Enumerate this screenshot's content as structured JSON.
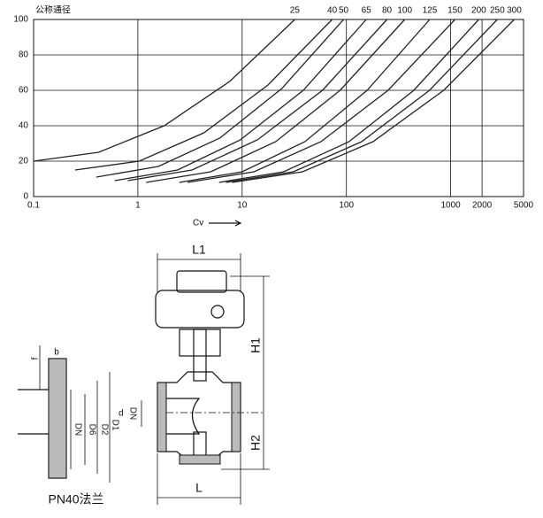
{
  "chart_data": {
    "type": "line",
    "y_label": "公称通径",
    "x_label": "Cv",
    "xscale": "log",
    "xlim": [
      0.1,
      5000
    ],
    "xticks": [
      0.1,
      1,
      10,
      100,
      1000,
      2000,
      5000
    ],
    "ylim": [
      0,
      100
    ],
    "yticks": [
      0,
      20,
      40,
      60,
      80,
      100
    ],
    "grid": true,
    "series": [
      {
        "name": "25",
        "color": "#222222",
        "x": [
          0.1,
          0.42,
          1.79,
          7.6,
          32
        ],
        "values": [
          20,
          25,
          40,
          65,
          100
        ]
      },
      {
        "name": "40",
        "color": "#222222",
        "x": [
          0.25,
          1.03,
          4.3,
          17.7,
          73
        ],
        "values": [
          15,
          20,
          36,
          63,
          100
        ]
      },
      {
        "name": "50",
        "color": "#222222",
        "x": [
          0.4,
          1.57,
          6.1,
          24,
          94
        ],
        "values": [
          11,
          17,
          33,
          61,
          100
        ]
      },
      {
        "name": "65",
        "color": "#222222",
        "x": [
          0.6,
          2.4,
          9.6,
          38.6,
          155
        ],
        "values": [
          9,
          15,
          32,
          60,
          100
        ]
      },
      {
        "name": "80",
        "color": "#222222",
        "x": [
          0.8,
          3.3,
          14,
          59,
          245
        ],
        "values": [
          9,
          15,
          32,
          60,
          100
        ]
      },
      {
        "name": "100",
        "color": "#222222",
        "x": [
          1.2,
          5,
          21,
          87,
          363
        ],
        "values": [
          8,
          14,
          31,
          60,
          100
        ]
      },
      {
        "name": "125",
        "color": "#222222",
        "x": [
          2.5,
          10,
          40,
          158,
          630
        ],
        "values": [
          8,
          14,
          31,
          60,
          100
        ]
      },
      {
        "name": "150",
        "color": "#222222",
        "x": [
          3,
          13,
          57,
          251,
          1100
        ],
        "values": [
          8,
          14,
          31,
          60,
          100
        ]
      },
      {
        "name": "200",
        "color": "#222222",
        "x": [
          6,
          25,
          106,
          443,
          1860
        ],
        "values": [
          8,
          14,
          31,
          60,
          100
        ]
      },
      {
        "name": "250",
        "color": "#222222",
        "x": [
          7,
          31,
          140,
          627,
          2800
        ],
        "values": [
          8,
          14,
          31,
          60,
          100
        ]
      },
      {
        "name": "300",
        "color": "#222222",
        "x": [
          8,
          38,
          180,
          857,
          4070
        ],
        "values": [
          8,
          14,
          31,
          60,
          100
        ]
      }
    ]
  },
  "drawing": {
    "labels": {
      "l1": "L1",
      "h1": "H1",
      "h2": "H2",
      "l": "L",
      "dn": "DN",
      "flange_dn": "DN",
      "d1": "D1",
      "d2": "D2",
      "d6": "D6",
      "b": "b",
      "f": "f",
      "d": "d",
      "caption": "PN40法兰"
    }
  }
}
